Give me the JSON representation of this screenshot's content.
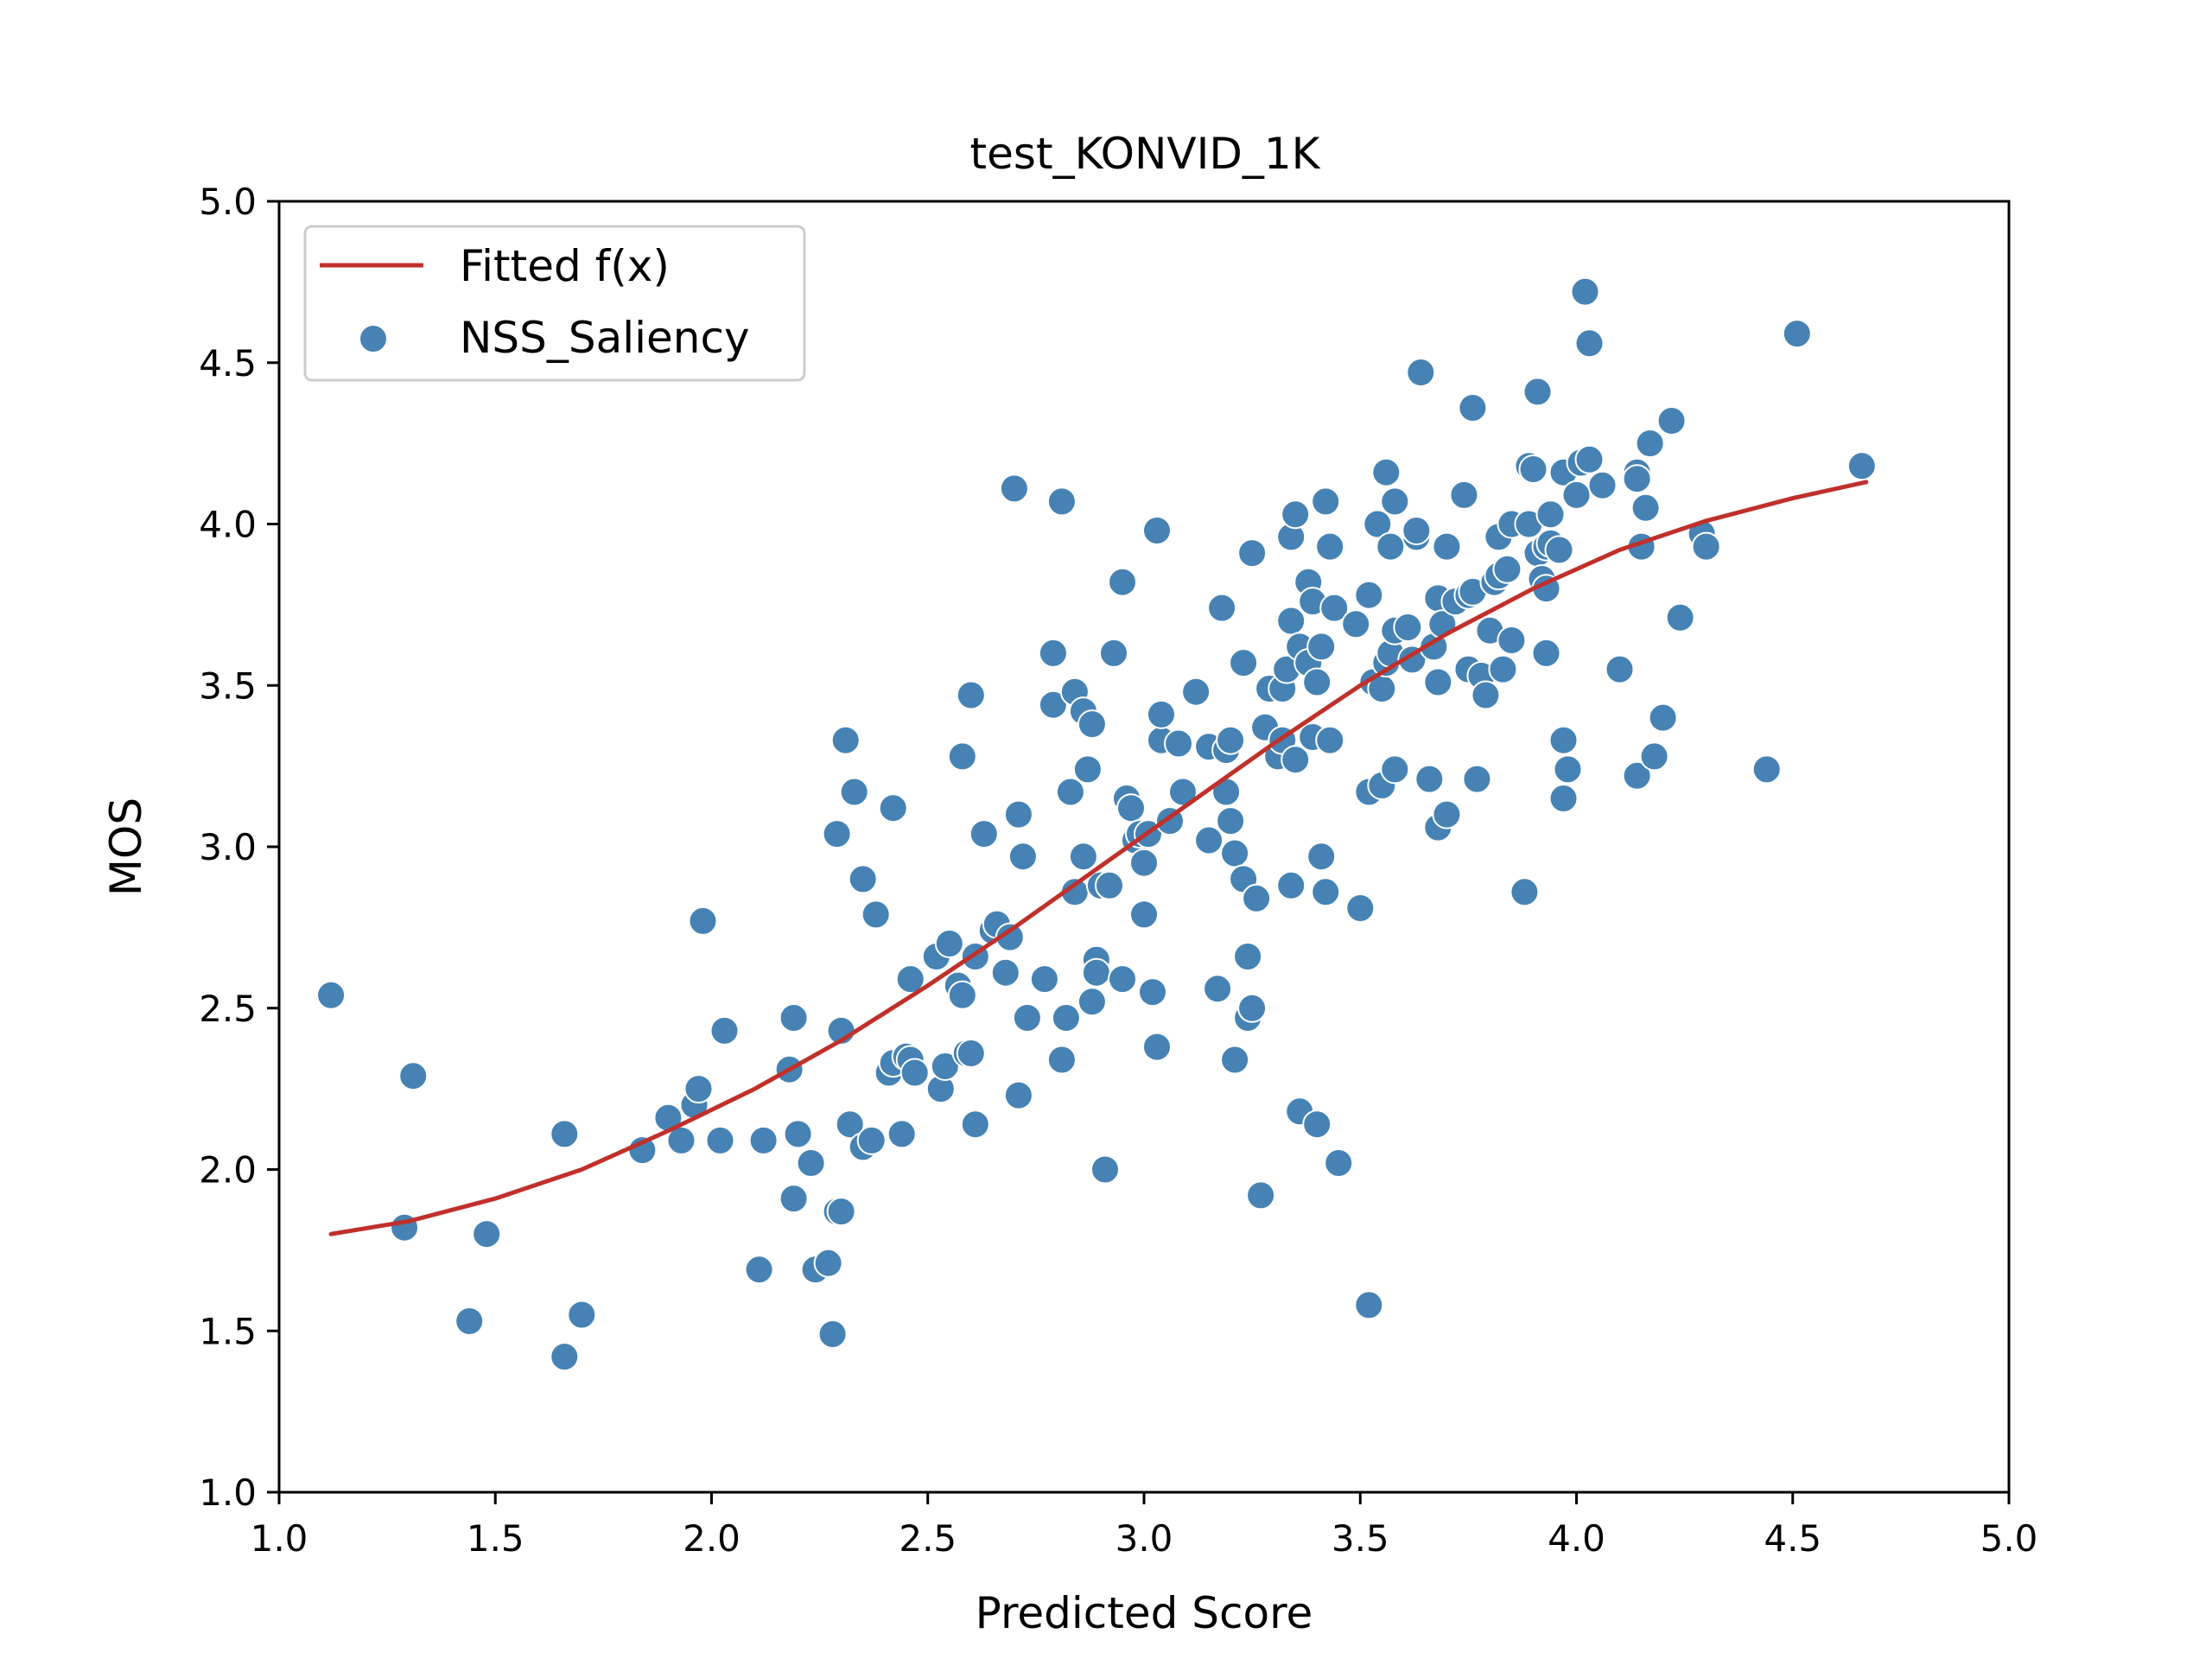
{
  "chart_data": {
    "type": "scatter",
    "title": "test_KONVID_1K",
    "xlabel": "Predicted Score",
    "ylabel": "MOS",
    "xlim": [
      1.0,
      5.0
    ],
    "ylim": [
      1.0,
      5.0
    ],
    "xticks": [
      "1.0",
      "1.5",
      "2.0",
      "2.5",
      "3.0",
      "3.5",
      "4.0",
      "4.5",
      "5.0"
    ],
    "yticks": [
      "1.0",
      "1.5",
      "2.0",
      "2.5",
      "3.0",
      "3.5",
      "4.0",
      "4.5",
      "5.0"
    ],
    "grid": false,
    "legend_position": "top-left",
    "colors": {
      "points": "#4682b4",
      "fit": "#c0302b"
    },
    "series": [
      {
        "name": "NSS_Saliency",
        "kind": "scatter",
        "points": [
          [
            1.12,
            2.54
          ],
          [
            1.29,
            1.82
          ],
          [
            1.31,
            2.29
          ],
          [
            1.44,
            1.53
          ],
          [
            1.48,
            1.8
          ],
          [
            1.66,
            2.11
          ],
          [
            1.66,
            1.42
          ],
          [
            1.7,
            1.55
          ],
          [
            1.84,
            2.06
          ],
          [
            1.9,
            2.16
          ],
          [
            1.93,
            2.09
          ],
          [
            1.96,
            2.2
          ],
          [
            1.97,
            2.25
          ],
          [
            1.98,
            2.77
          ],
          [
            2.02,
            2.09
          ],
          [
            2.03,
            2.43
          ],
          [
            2.11,
            1.69
          ],
          [
            2.12,
            2.09
          ],
          [
            2.18,
            2.31
          ],
          [
            2.19,
            2.47
          ],
          [
            2.19,
            1.91
          ],
          [
            2.2,
            2.11
          ],
          [
            2.23,
            2.02
          ],
          [
            2.24,
            1.69
          ],
          [
            2.27,
            1.71
          ],
          [
            2.28,
            1.49
          ],
          [
            2.29,
            3.04
          ],
          [
            2.29,
            1.87
          ],
          [
            2.3,
            1.87
          ],
          [
            2.3,
            2.43
          ],
          [
            2.31,
            3.33
          ],
          [
            2.32,
            2.14
          ],
          [
            2.33,
            3.17
          ],
          [
            2.35,
            2.07
          ],
          [
            2.35,
            2.9
          ],
          [
            2.37,
            2.09
          ],
          [
            2.38,
            2.79
          ],
          [
            2.41,
            2.3
          ],
          [
            2.42,
            3.12
          ],
          [
            2.42,
            2.33
          ],
          [
            2.44,
            2.11
          ],
          [
            2.45,
            2.35
          ],
          [
            2.46,
            2.34
          ],
          [
            2.46,
            2.59
          ],
          [
            2.47,
            2.3
          ],
          [
            2.52,
            2.66
          ],
          [
            2.53,
            2.25
          ],
          [
            2.54,
            2.32
          ],
          [
            2.55,
            2.7
          ],
          [
            2.57,
            2.57
          ],
          [
            2.58,
            2.54
          ],
          [
            2.58,
            3.28
          ],
          [
            2.59,
            2.36
          ],
          [
            2.6,
            3.47
          ],
          [
            2.6,
            2.36
          ],
          [
            2.61,
            2.14
          ],
          [
            2.61,
            2.66
          ],
          [
            2.63,
            3.04
          ],
          [
            2.65,
            2.74
          ],
          [
            2.66,
            2.76
          ],
          [
            2.68,
            2.61
          ],
          [
            2.69,
            2.72
          ],
          [
            2.7,
            4.11
          ],
          [
            2.71,
            3.1
          ],
          [
            2.71,
            2.23
          ],
          [
            2.72,
            2.97
          ],
          [
            2.73,
            2.47
          ],
          [
            2.77,
            2.59
          ],
          [
            2.79,
            3.6
          ],
          [
            2.79,
            3.44
          ],
          [
            2.81,
            4.07
          ],
          [
            2.81,
            2.34
          ],
          [
            2.82,
            2.47
          ],
          [
            2.83,
            3.17
          ],
          [
            2.84,
            2.86
          ],
          [
            2.84,
            3.48
          ],
          [
            2.86,
            3.42
          ],
          [
            2.86,
            2.97
          ],
          [
            2.87,
            3.24
          ],
          [
            2.88,
            3.38
          ],
          [
            2.88,
            2.52
          ],
          [
            2.89,
            2.65
          ],
          [
            2.89,
            2.61
          ],
          [
            2.9,
            2.88
          ],
          [
            2.91,
            2.0
          ],
          [
            2.92,
            2.88
          ],
          [
            2.93,
            3.6
          ],
          [
            2.95,
            3.82
          ],
          [
            2.95,
            2.59
          ],
          [
            2.96,
            3.15
          ],
          [
            2.97,
            3.12
          ],
          [
            2.98,
            3.02
          ],
          [
            2.99,
            3.04
          ],
          [
            3.0,
            2.95
          ],
          [
            3.0,
            2.79
          ],
          [
            3.01,
            3.04
          ],
          [
            3.02,
            2.55
          ],
          [
            3.03,
            3.98
          ],
          [
            3.03,
            2.38
          ],
          [
            3.04,
            3.33
          ],
          [
            3.04,
            3.41
          ],
          [
            3.06,
            3.08
          ],
          [
            3.08,
            3.32
          ],
          [
            3.09,
            3.17
          ],
          [
            3.12,
            3.48
          ],
          [
            3.15,
            3.31
          ],
          [
            3.15,
            3.02
          ],
          [
            3.17,
            2.56
          ],
          [
            3.18,
            3.74
          ],
          [
            3.19,
            3.17
          ],
          [
            3.19,
            3.3
          ],
          [
            3.2,
            3.33
          ],
          [
            3.2,
            3.08
          ],
          [
            3.21,
            2.98
          ],
          [
            3.21,
            2.34
          ],
          [
            3.23,
            3.57
          ],
          [
            3.23,
            2.9
          ],
          [
            3.24,
            2.66
          ],
          [
            3.24,
            2.47
          ],
          [
            3.25,
            3.91
          ],
          [
            3.25,
            2.5
          ],
          [
            3.26,
            2.84
          ],
          [
            3.27,
            1.92
          ],
          [
            3.28,
            3.37
          ],
          [
            3.29,
            3.49
          ],
          [
            3.31,
            3.28
          ],
          [
            3.32,
            3.49
          ],
          [
            3.32,
            3.33
          ],
          [
            3.33,
            3.55
          ],
          [
            3.34,
            3.7
          ],
          [
            3.34,
            3.96
          ],
          [
            3.34,
            2.88
          ],
          [
            3.35,
            4.03
          ],
          [
            3.35,
            3.27
          ],
          [
            3.36,
            3.62
          ],
          [
            3.36,
            2.18
          ],
          [
            3.38,
            3.57
          ],
          [
            3.38,
            3.82
          ],
          [
            3.39,
            3.34
          ],
          [
            3.39,
            3.76
          ],
          [
            3.4,
            2.14
          ],
          [
            3.4,
            3.51
          ],
          [
            3.41,
            2.97
          ],
          [
            3.41,
            3.62
          ],
          [
            3.42,
            4.07
          ],
          [
            3.42,
            2.86
          ],
          [
            3.43,
            3.93
          ],
          [
            3.43,
            3.33
          ],
          [
            3.44,
            3.74
          ],
          [
            3.45,
            2.02
          ],
          [
            3.49,
            3.69
          ],
          [
            3.5,
            2.81
          ],
          [
            3.52,
            3.78
          ],
          [
            3.52,
            3.17
          ],
          [
            3.52,
            1.58
          ],
          [
            3.53,
            3.51
          ],
          [
            3.54,
            4.0
          ],
          [
            3.55,
            3.49
          ],
          [
            3.55,
            3.19
          ],
          [
            3.56,
            3.57
          ],
          [
            3.56,
            4.16
          ],
          [
            3.57,
            3.93
          ],
          [
            3.57,
            3.6
          ],
          [
            3.58,
            3.24
          ],
          [
            3.58,
            4.07
          ],
          [
            3.58,
            3.67
          ],
          [
            3.61,
            3.68
          ],
          [
            3.62,
            3.58
          ],
          [
            3.63,
            3.96
          ],
          [
            3.63,
            3.98
          ],
          [
            3.64,
            4.47
          ],
          [
            3.66,
            3.21
          ],
          [
            3.67,
            3.62
          ],
          [
            3.68,
            3.77
          ],
          [
            3.68,
            3.51
          ],
          [
            3.68,
            3.06
          ],
          [
            3.69,
            3.69
          ],
          [
            3.7,
            3.93
          ],
          [
            3.7,
            3.1
          ],
          [
            3.72,
            3.76
          ],
          [
            3.74,
            4.09
          ],
          [
            3.75,
            3.55
          ],
          [
            3.75,
            3.78
          ],
          [
            3.76,
            3.79
          ],
          [
            3.76,
            4.36
          ],
          [
            3.77,
            3.21
          ],
          [
            3.78,
            3.53
          ],
          [
            3.79,
            3.47
          ],
          [
            3.8,
            3.67
          ],
          [
            3.81,
            3.82
          ],
          [
            3.82,
            3.84
          ],
          [
            3.82,
            3.96
          ],
          [
            3.83,
            3.55
          ],
          [
            3.84,
            3.86
          ],
          [
            3.85,
            3.64
          ],
          [
            3.85,
            4.0
          ],
          [
            3.88,
            2.86
          ],
          [
            3.89,
            4.18
          ],
          [
            3.89,
            4.0
          ],
          [
            3.9,
            4.17
          ],
          [
            3.91,
            3.91
          ],
          [
            3.91,
            4.41
          ],
          [
            3.92,
            3.83
          ],
          [
            3.93,
            3.93
          ],
          [
            3.93,
            3.8
          ],
          [
            3.94,
            4.03
          ],
          [
            3.94,
            3.94
          ],
          [
            3.93,
            3.6
          ],
          [
            3.96,
            3.92
          ],
          [
            3.97,
            3.15
          ],
          [
            3.97,
            3.33
          ],
          [
            3.97,
            4.16
          ],
          [
            3.98,
            3.24
          ],
          [
            4.0,
            4.09
          ],
          [
            4.01,
            4.19
          ],
          [
            4.02,
            4.72
          ],
          [
            4.03,
            4.56
          ],
          [
            4.03,
            4.2
          ],
          [
            4.06,
            4.12
          ],
          [
            4.1,
            3.55
          ],
          [
            4.14,
            4.16
          ],
          [
            4.14,
            4.14
          ],
          [
            4.14,
            3.22
          ],
          [
            4.15,
            3.93
          ],
          [
            4.16,
            4.05
          ],
          [
            4.17,
            4.25
          ],
          [
            4.18,
            3.28
          ],
          [
            4.2,
            3.4
          ],
          [
            4.22,
            4.32
          ],
          [
            4.24,
            3.71
          ],
          [
            4.29,
            3.97
          ],
          [
            4.3,
            3.93
          ],
          [
            4.44,
            3.24
          ],
          [
            4.51,
            4.59
          ],
          [
            4.66,
            4.18
          ]
        ]
      },
      {
        "name": "Fitted f(x)",
        "kind": "line",
        "points": [
          [
            1.12,
            1.8
          ],
          [
            1.3,
            1.84
          ],
          [
            1.5,
            1.91
          ],
          [
            1.7,
            2.0
          ],
          [
            1.9,
            2.12
          ],
          [
            2.1,
            2.25
          ],
          [
            2.3,
            2.4
          ],
          [
            2.5,
            2.57
          ],
          [
            2.7,
            2.75
          ],
          [
            2.9,
            2.94
          ],
          [
            3.1,
            3.13
          ],
          [
            3.3,
            3.32
          ],
          [
            3.5,
            3.5
          ],
          [
            3.7,
            3.66
          ],
          [
            3.9,
            3.8
          ],
          [
            4.1,
            3.92
          ],
          [
            4.3,
            4.01
          ],
          [
            4.5,
            4.08
          ],
          [
            4.67,
            4.13
          ]
        ]
      }
    ]
  }
}
